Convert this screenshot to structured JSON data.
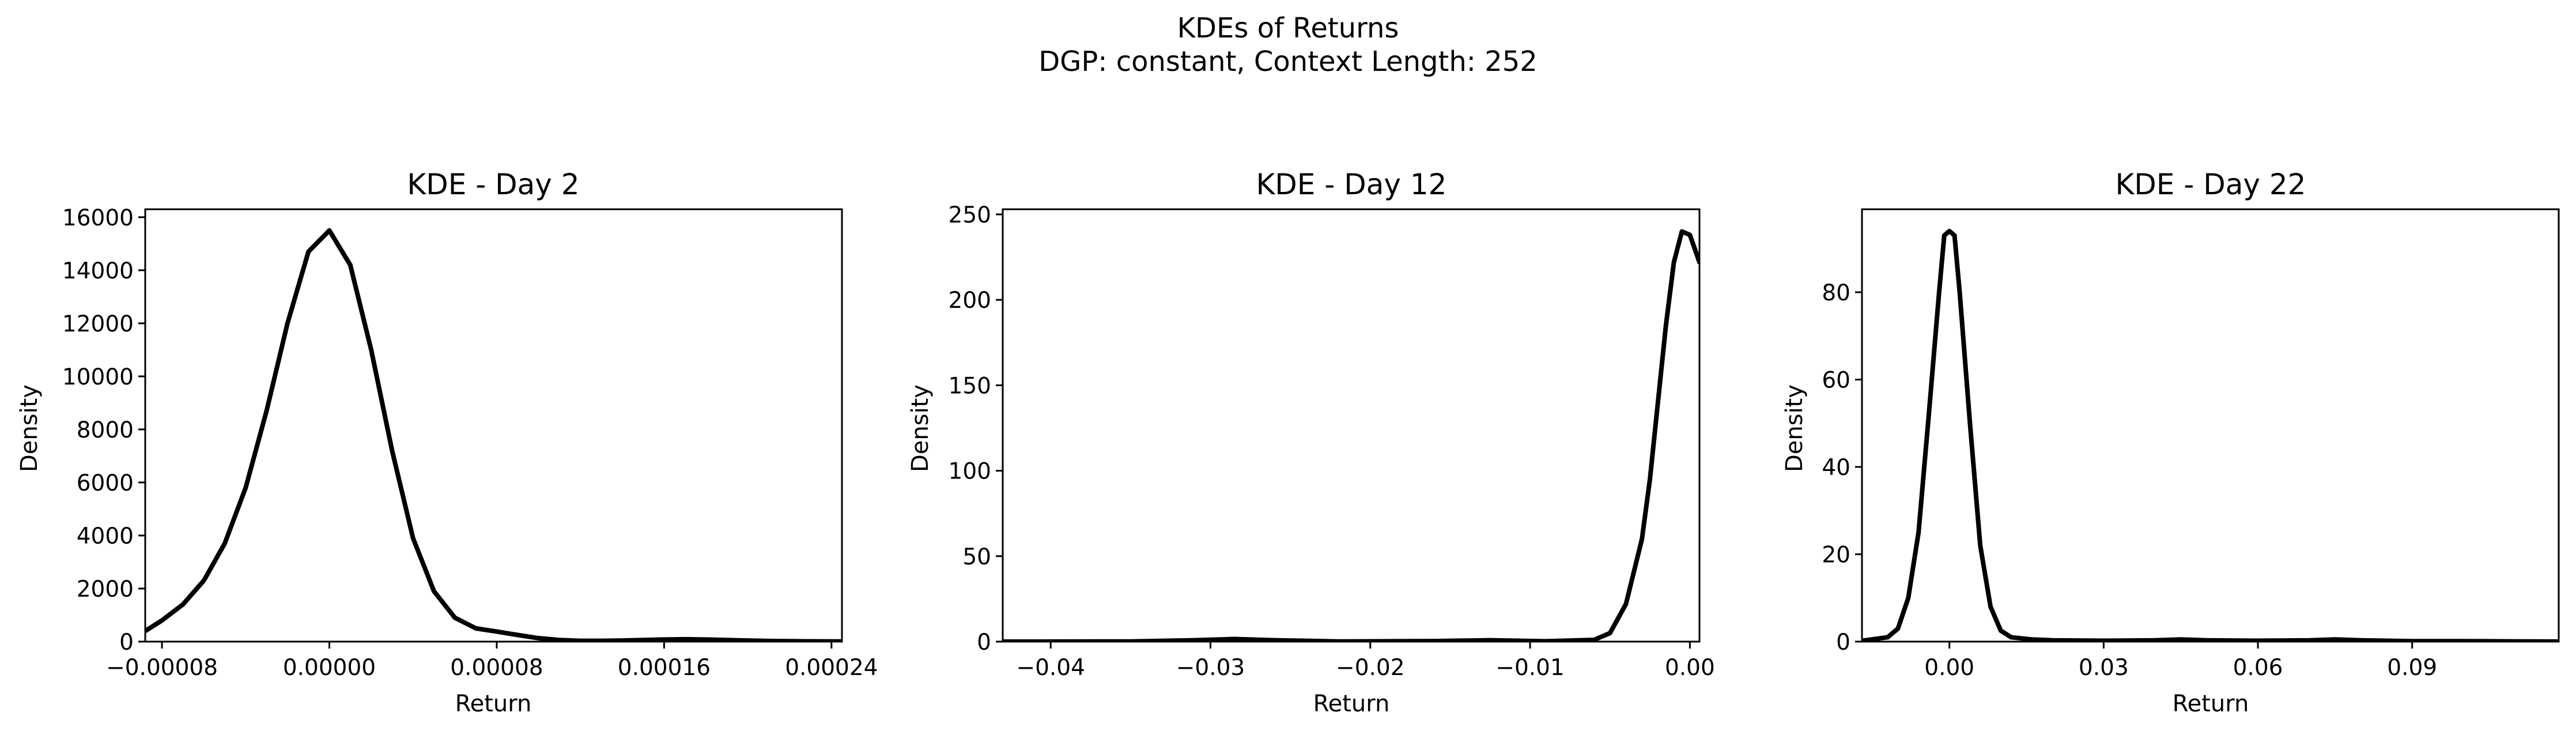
{
  "figure": {
    "title_line1": "KDEs of Returns",
    "title_line2": "DGP: constant, Context Length: 252"
  },
  "chart_data": [
    {
      "type": "line",
      "title": "KDE - Day 2",
      "xlabel": "Return",
      "ylabel": "Density",
      "xlim": [
        -8.8e-05,
        0.000245
      ],
      "ylim": [
        0,
        16300
      ],
      "xticks": [
        -8e-05,
        0.0,
        8e-05,
        0.00016,
        0.00024
      ],
      "xtick_labels": [
        "−0.00008",
        "0.00000",
        "0.00008",
        "0.00016",
        "0.00024"
      ],
      "yticks": [
        0,
        2000,
        4000,
        6000,
        8000,
        10000,
        12000,
        14000,
        16000
      ],
      "ytick_labels": [
        "0",
        "2000",
        "4000",
        "6000",
        "8000",
        "10000",
        "12000",
        "14000",
        "16000"
      ],
      "line_color": "#000000",
      "grid": false,
      "series": [
        {
          "x": [
            -8.8e-05,
            -8e-05,
            -7e-05,
            -6e-05,
            -5e-05,
            -4e-05,
            -3e-05,
            -2e-05,
            -1e-05,
            0.0,
            1e-05,
            2e-05,
            3e-05,
            4e-05,
            5e-05,
            6e-05,
            7e-05,
            8e-05,
            9e-05,
            0.0001,
            0.00011,
            0.00012,
            0.00013,
            0.00014,
            0.00015,
            0.00016,
            0.00017,
            0.00018,
            0.00019,
            0.0002,
            0.00021,
            0.00022,
            0.00023,
            0.000245
          ],
          "y": [
            400,
            800,
            1400,
            2300,
            3700,
            5800,
            8700,
            12000,
            14700,
            15500,
            14200,
            11000,
            7200,
            3900,
            1900,
            900,
            500,
            380,
            250,
            130,
            60,
            30,
            30,
            40,
            60,
            80,
            90,
            80,
            60,
            40,
            25,
            15,
            10,
            5
          ]
        }
      ]
    },
    {
      "type": "line",
      "title": "KDE - Day 12",
      "xlabel": "Return",
      "ylabel": "Density",
      "xlim": [
        -0.043,
        0.0006
      ],
      "ylim": [
        0,
        253
      ],
      "xticks": [
        -0.04,
        -0.03,
        -0.02,
        -0.01,
        0.0
      ],
      "xtick_labels": [
        "−0.04",
        "−0.03",
        "−0.02",
        "−0.01",
        "0.00"
      ],
      "yticks": [
        0,
        50,
        100,
        150,
        200,
        250
      ],
      "ytick_labels": [
        "0",
        "50",
        "100",
        "150",
        "200",
        "250"
      ],
      "line_color": "#000000",
      "grid": false,
      "series": [
        {
          "x": [
            -0.043,
            -0.035,
            -0.031,
            -0.0285,
            -0.026,
            -0.022,
            -0.016,
            -0.0125,
            -0.009,
            -0.006,
            -0.005,
            -0.004,
            -0.003,
            -0.0025,
            -0.002,
            -0.0015,
            -0.001,
            -0.0005,
            0.0,
            0.0003,
            0.0006
          ],
          "y": [
            0,
            0.1,
            0.8,
            1.5,
            0.8,
            0.1,
            0.3,
            0.8,
            0.2,
            1,
            5,
            22,
            60,
            95,
            140,
            185,
            222,
            240,
            238,
            230,
            222
          ]
        }
      ]
    },
    {
      "type": "line",
      "title": "KDE - Day 22",
      "xlabel": "Return",
      "ylabel": "Density",
      "xlim": [
        -0.017,
        0.1185
      ],
      "ylim": [
        0,
        99
      ],
      "xticks": [
        0.0,
        0.03,
        0.06,
        0.09
      ],
      "xtick_labels": [
        "0.00",
        "0.03",
        "0.06",
        "0.09"
      ],
      "yticks": [
        0,
        20,
        40,
        60,
        80
      ],
      "ytick_labels": [
        "0",
        "20",
        "40",
        "60",
        "80"
      ],
      "line_color": "#000000",
      "grid": false,
      "series": [
        {
          "x": [
            -0.017,
            -0.012,
            -0.01,
            -0.008,
            -0.006,
            -0.004,
            -0.002,
            -0.001,
            0.0,
            0.001,
            0.002,
            0.004,
            0.006,
            0.008,
            0.01,
            0.012,
            0.016,
            0.02,
            0.03,
            0.04,
            0.045,
            0.05,
            0.06,
            0.07,
            0.075,
            0.08,
            0.09,
            0.1,
            0.11,
            0.1185
          ],
          "y": [
            0.2,
            1,
            3,
            10,
            25,
            52,
            80,
            93,
            94,
            93,
            80,
            50,
            22,
            8,
            2.5,
            1,
            0.5,
            0.3,
            0.2,
            0.3,
            0.5,
            0.3,
            0.2,
            0.3,
            0.5,
            0.3,
            0.1,
            0.1,
            0.05,
            0.02
          ]
        }
      ]
    }
  ]
}
